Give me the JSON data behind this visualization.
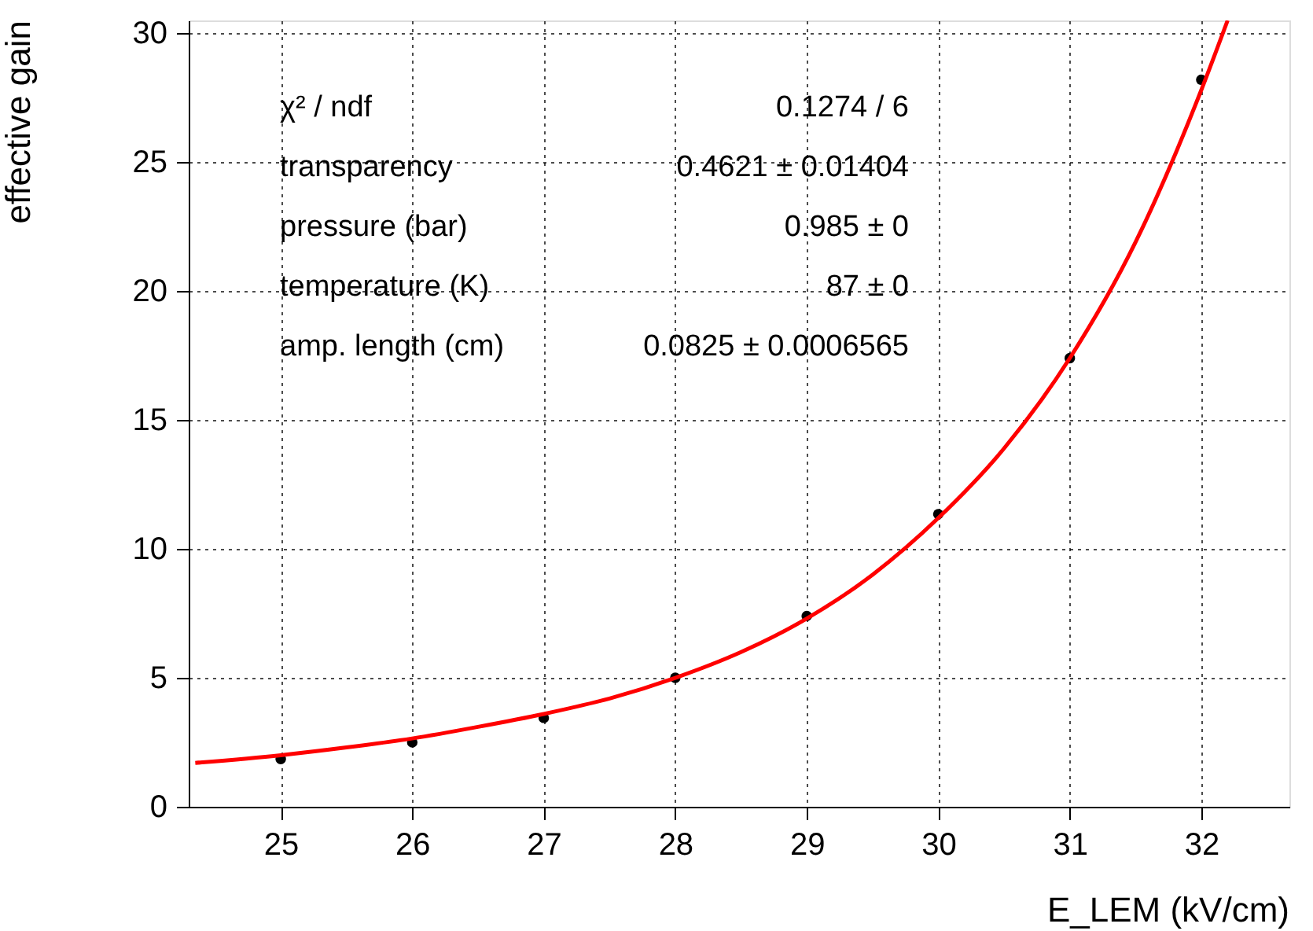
{
  "chart_data": {
    "type": "scatter",
    "xlabel": "E_LEM (kV/cm)",
    "ylabel": "effective gain",
    "xlim": [
      24.3,
      32.67
    ],
    "ylim": [
      0,
      30.5
    ],
    "xticks": [
      25,
      26,
      27,
      28,
      29,
      30,
      31,
      32
    ],
    "yticks": [
      0,
      5,
      10,
      15,
      20,
      25,
      30
    ],
    "grid": true,
    "annotations": [
      "χ² / ndf",
      "0.1274 / 6",
      "transparency",
      "0.4621 ± 0.01404",
      "pressure (bar)",
      "0.985 ±     0",
      "temperature (K)",
      "87 ±     0",
      "amp. length (cm)",
      "0.0825 ± 0.0006565"
    ],
    "series": [
      {
        "marker": "circle",
        "color": "#000000",
        "x": [
          25,
          26,
          27,
          28,
          29,
          30,
          31,
          32
        ],
        "values": [
          1.85,
          2.5,
          3.45,
          5.0,
          7.4,
          11.35,
          17.4,
          28.2
        ]
      },
      {
        "type": "line",
        "color": "#ff0000",
        "line_style": "solid",
        "x": [
          24.35,
          25,
          25.5,
          26,
          26.5,
          27,
          27.5,
          28,
          28.5,
          29,
          29.5,
          30,
          30.5,
          31,
          31.5,
          32,
          32.2
        ],
        "values": [
          1.7,
          2.0,
          2.3,
          2.65,
          3.1,
          3.6,
          4.2,
          5.0,
          6.0,
          7.3,
          9.0,
          11.2,
          13.9,
          17.4,
          21.9,
          27.8,
          30.5
        ]
      }
    ]
  }
}
